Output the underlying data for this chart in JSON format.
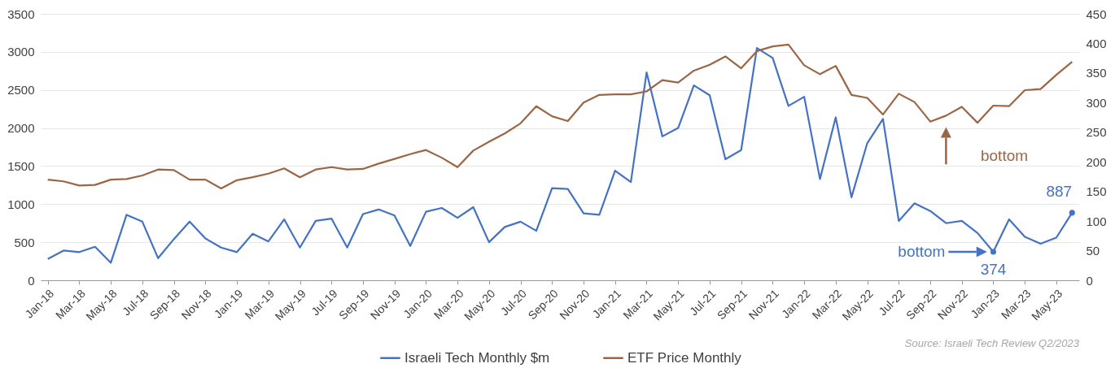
{
  "chart_data": {
    "type": "line",
    "categories": [
      "Jan-18",
      null,
      "Mar-18",
      null,
      "May-18",
      null,
      "Jul-18",
      null,
      "Sep-18",
      null,
      "Nov-18",
      null,
      "Jan-19",
      null,
      "Mar-19",
      null,
      "May-19",
      null,
      "Jul-19",
      null,
      "Sep-19",
      null,
      "Nov-19",
      null,
      "Jan-20",
      null,
      "Mar-20",
      null,
      "May-20",
      null,
      "Jul-20",
      null,
      "Sep-20",
      null,
      "Nov-20",
      null,
      "Jan-21",
      null,
      "Mar-21",
      null,
      "May-21",
      null,
      "Jul-21",
      null,
      "Sep-21",
      null,
      "Nov-21",
      null,
      "Jan-22",
      null,
      "Mar-22",
      null,
      "May-22",
      null,
      "Jul-22",
      null,
      "Sep-22",
      null,
      "Nov-22",
      null,
      "Jan-23",
      null,
      "Mar-23",
      null,
      "May-23",
      null
    ],
    "series": [
      {
        "name": "Israeli Tech Monthly $m",
        "color": "#4472c4",
        "values": [
          280,
          390,
          370,
          440,
          230,
          860,
          770,
          290,
          540,
          770,
          550,
          430,
          370,
          610,
          510,
          800,
          430,
          780,
          810,
          430,
          870,
          930,
          850,
          450,
          900,
          950,
          820,
          960,
          500,
          700,
          770,
          650,
          1210,
          1200,
          880,
          860,
          1440,
          1290,
          2730,
          1890,
          2000,
          2560,
          2430,
          1590,
          1710,
          3050,
          2920,
          2290,
          2410,
          1330,
          2140,
          1090,
          1800,
          2120,
          780,
          1010,
          910,
          750,
          780,
          620,
          374,
          800,
          570,
          480,
          560,
          887
        ],
        "value_labels": [
          null,
          null,
          null,
          null,
          null,
          null,
          null,
          null,
          null,
          null,
          null,
          null,
          null,
          null,
          null,
          null,
          null,
          null,
          null,
          null,
          null,
          null,
          null,
          null,
          null,
          null,
          null,
          null,
          null,
          null,
          null,
          null,
          null,
          null,
          null,
          null,
          null,
          null,
          null,
          null,
          null,
          null,
          null,
          null,
          null,
          null,
          null,
          null,
          null,
          null,
          null,
          null,
          null,
          null,
          null,
          null,
          null,
          null,
          null,
          null,
          "374",
          null,
          null,
          null,
          null,
          "887"
        ]
      },
      {
        "name": "ETF Price Monthly",
        "color": "#9c6644",
        "axis": "y2",
        "values": [
          170,
          167,
          160,
          161,
          170,
          171,
          177,
          187,
          186,
          170,
          170,
          155,
          169,
          174,
          180,
          189,
          174,
          187,
          191,
          187,
          188,
          197,
          205,
          213,
          220,
          207,
          191,
          219,
          234,
          248,
          265,
          294,
          277,
          269,
          300,
          313,
          314,
          314,
          319,
          338,
          334,
          354,
          364,
          378,
          358,
          387,
          395,
          398,
          363,
          348,
          362,
          313,
          308,
          280,
          315,
          301,
          268,
          278,
          293,
          266,
          295,
          294,
          321,
          323,
          347,
          369
        ]
      }
    ],
    "ylim": [
      0,
      3500
    ],
    "yticks": [
      0,
      500,
      1000,
      1500,
      2000,
      2500,
      3000,
      3500
    ],
    "y2lim": [
      0,
      450
    ],
    "y2ticks": [
      0,
      50,
      100,
      150,
      200,
      250,
      300,
      350,
      400,
      450
    ],
    "grid": "y",
    "legend": "bottom",
    "annotations": [
      "bottom",
      "bottom",
      "Source: Israeli Tech Review Q2/2023"
    ]
  }
}
